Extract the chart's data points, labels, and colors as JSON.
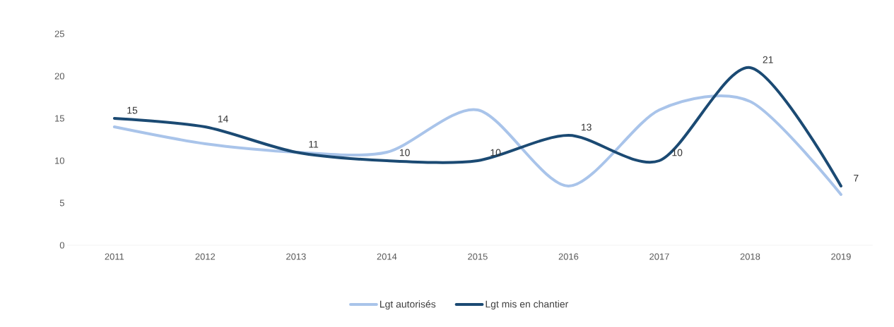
{
  "chart_data": {
    "type": "line",
    "categories": [
      "2011",
      "2012",
      "2013",
      "2014",
      "2015",
      "2016",
      "2017",
      "2018",
      "2019"
    ],
    "series": [
      {
        "name": "Lgt autorisés",
        "color": "#a9c4ea",
        "values": [
          14,
          12,
          11,
          11,
          16,
          7,
          16,
          17,
          6
        ]
      },
      {
        "name": "Lgt mis en chantier",
        "color": "#1b4a73",
        "values": [
          15,
          14,
          11,
          10,
          10,
          13,
          10,
          21,
          7
        ],
        "value_labels": [
          "15",
          "14",
          "11",
          "10",
          "10",
          "13",
          "10",
          "21",
          "7"
        ]
      }
    ],
    "ylim": [
      0,
      25
    ],
    "yticks": [
      0,
      5,
      10,
      15,
      20,
      25
    ],
    "grid": false,
    "legend": "bottom",
    "marker": "none",
    "line_style": "solid"
  }
}
